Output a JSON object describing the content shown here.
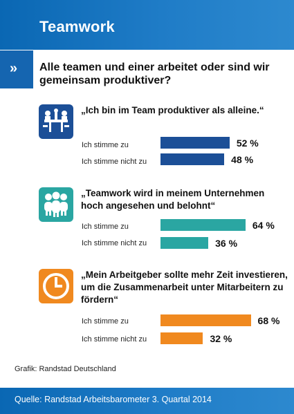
{
  "header": {
    "title": "Teamwork"
  },
  "question": {
    "icon": "double-chevron-right-icon",
    "text": "Alle teamen und einer arbeitet oder sind wir gemeinsam produktiver?"
  },
  "colors": {
    "dark_blue": "#1c4f97",
    "teal": "#2aa6a2",
    "orange": "#f0891f",
    "header_blue": "#0a67b3"
  },
  "chart_data": [
    {
      "type": "bar",
      "title": "„Ich bin im Team produktiver als alleine.“",
      "icon": "team-table-icon",
      "categories": [
        "Ich stimme zu",
        "Ich stimme nicht zu"
      ],
      "values": [
        52,
        48
      ],
      "labels": [
        "52 %",
        "48 %"
      ],
      "color": "#1c4f97"
    },
    {
      "type": "bar",
      "title": "„Teamwork wird in meinem Unternehmen hoch angesehen und belohnt“",
      "icon": "group-people-icon",
      "categories": [
        "Ich stimme zu",
        "Ich stimme nicht zu"
      ],
      "values": [
        64,
        36
      ],
      "labels": [
        "64 %",
        "36 %"
      ],
      "color": "#2aa6a2"
    },
    {
      "type": "bar",
      "title": "„Mein Arbeitgeber sollte mehr Zeit investieren, um die Zusammenarbeit unter Mitarbeitern zu fördern“",
      "icon": "clock-icon",
      "categories": [
        "Ich stimme zu",
        "Ich stimme nicht zu"
      ],
      "values": [
        68,
        32
      ],
      "labels": [
        "68 %",
        "32 %"
      ],
      "color": "#f0891f"
    }
  ],
  "credit": "Grafik: Randstad Deutschland",
  "footer": {
    "source": "Quelle: Randstad Arbeitsbarometer 3. Quartal 2014"
  }
}
